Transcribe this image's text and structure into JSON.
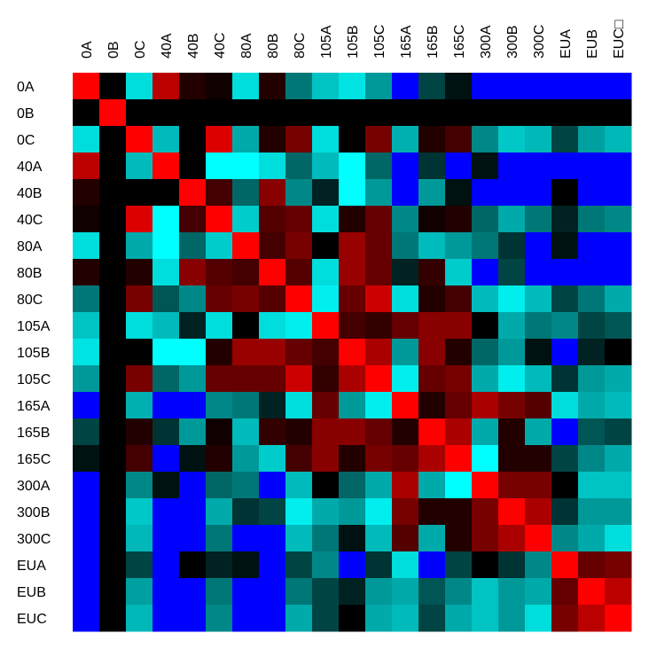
{
  "chart_data": {
    "type": "heatmap",
    "labels": [
      "0A",
      "0B",
      "0C",
      "40A",
      "40B",
      "40C",
      "80A",
      "80B",
      "80C",
      "105A",
      "105B",
      "105C",
      "165A",
      "165B",
      "165C",
      "300A",
      "300B",
      "300C",
      "EUA",
      "EUB",
      "EUC□"
    ],
    "row_labels": [
      "0A",
      "0B",
      "0C",
      "40A",
      "40B",
      "40C",
      "80A",
      "80B",
      "80C",
      "105A",
      "105B",
      "105C",
      "165A",
      "165B",
      "165C",
      "300A",
      "300B",
      "300C",
      "EUA",
      "EUB",
      "EUC"
    ],
    "colors": [
      [
        "#ff0000",
        "#000000",
        "#00dddd",
        "#bb0000",
        "#220000",
        "#110000",
        "#00dddd",
        "#220000",
        "#007777",
        "#00c4c4",
        "#00e3e3",
        "#009999",
        "#0000ff",
        "#004444",
        "#001111",
        "#0000ff",
        "#0000ff",
        "#0000ff",
        "#0000ff",
        "#0000ff",
        "#0000ff"
      ],
      [
        "#000000",
        "#ff0000",
        "#000000",
        "#000000",
        "#000000",
        "#000000",
        "#000000",
        "#000000",
        "#000000",
        "#000000",
        "#000000",
        "#000000",
        "#000000",
        "#000000",
        "#000000",
        "#000000",
        "#000000",
        "#000000",
        "#000000",
        "#000000",
        "#000000"
      ],
      [
        "#00dddd",
        "#000000",
        "#ff0000",
        "#00bbbb",
        "#000000",
        "#dd0000",
        "#00aaaa",
        "#220000",
        "#770000",
        "#00dddd",
        "#000000",
        "#770000",
        "#00b0b0",
        "#220000",
        "#440000",
        "#008888",
        "#00c8c8",
        "#00b8b8",
        "#004444",
        "#00a0a0",
        "#00b8b8"
      ],
      [
        "#bb0000",
        "#000000",
        "#00bbbb",
        "#ff0000",
        "#000000",
        "#00ffff",
        "#00ffff",
        "#00dddd",
        "#006666",
        "#00bbbb",
        "#00ffff",
        "#006666",
        "#0000ff",
        "#003333",
        "#0000ff",
        "#001111",
        "#0000ff",
        "#0000ff",
        "#0000ff",
        "#0000ff",
        "#0000ff"
      ],
      [
        "#220000",
        "#000000",
        "#000000",
        "#000000",
        "#ff0000",
        "#440000",
        "#006666",
        "#880000",
        "#008888",
        "#002222",
        "#00ffff",
        "#009999",
        "#0000ff",
        "#009999",
        "#001111",
        "#0000ff",
        "#0000ff",
        "#0000ff",
        "#000000",
        "#0000ff",
        "#0000ff"
      ],
      [
        "#110000",
        "#000000",
        "#dd0000",
        "#00ffff",
        "#440000",
        "#ff0000",
        "#00cccc",
        "#550000",
        "#660000",
        "#00dddd",
        "#220000",
        "#660000",
        "#008888",
        "#110000",
        "#220000",
        "#006666",
        "#00aaaa",
        "#007777",
        "#002222",
        "#007777",
        "#008888"
      ],
      [
        "#00dddd",
        "#000000",
        "#00aaaa",
        "#00ffff",
        "#006666",
        "#00cccc",
        "#ff0000",
        "#440000",
        "#770000",
        "#000000",
        "#990000",
        "#660000",
        "#007777",
        "#00bbbb",
        "#009999",
        "#007777",
        "#003333",
        "#0000ff",
        "#001111",
        "#0000ff",
        "#0000ff"
      ],
      [
        "#220000",
        "#000000",
        "#220000",
        "#00dddd",
        "#880000",
        "#550000",
        "#440000",
        "#ff0000",
        "#550000",
        "#00dddd",
        "#990000",
        "#660000",
        "#002222",
        "#330000",
        "#00cccc",
        "#0000ff",
        "#004444",
        "#0000ff",
        "#0000ff",
        "#0000ff",
        "#0000ff"
      ],
      [
        "#007777",
        "#000000",
        "#770000",
        "#005555",
        "#008888",
        "#660000",
        "#770000",
        "#550000",
        "#ff0000",
        "#00eeee",
        "#660000",
        "#cc0000",
        "#00dddd",
        "#220000",
        "#440000",
        "#00bbbb",
        "#00eeee",
        "#00bbbb",
        "#004444",
        "#007777",
        "#00aaaa"
      ],
      [
        "#00c4c4",
        "#000000",
        "#00dddd",
        "#00bbbb",
        "#002222",
        "#00dddd",
        "#000000",
        "#00dddd",
        "#00eeee",
        "#ff0000",
        "#440000",
        "#330000",
        "#660000",
        "#880000",
        "#880000",
        "#000000",
        "#00aaaa",
        "#007777",
        "#008888",
        "#004444",
        "#005555"
      ],
      [
        "#00e3e3",
        "#000000",
        "#000000",
        "#00ffff",
        "#00ffff",
        "#220000",
        "#990000",
        "#990000",
        "#660000",
        "#440000",
        "#ff0000",
        "#aa0000",
        "#009999",
        "#880000",
        "#220000",
        "#006666",
        "#009999",
        "#001111",
        "#0000ff",
        "#002222",
        "#000000"
      ],
      [
        "#009999",
        "#000000",
        "#770000",
        "#006666",
        "#009999",
        "#660000",
        "#660000",
        "#660000",
        "#cc0000",
        "#330000",
        "#aa0000",
        "#ff0000",
        "#00eeee",
        "#660000",
        "#770000",
        "#00aaaa",
        "#00eeee",
        "#00bbbb",
        "#003333",
        "#009999",
        "#00aaaa"
      ],
      [
        "#0000ff",
        "#000000",
        "#00b0b0",
        "#0000ff",
        "#0000ff",
        "#008888",
        "#007777",
        "#002222",
        "#00dddd",
        "#660000",
        "#009999",
        "#00eeee",
        "#ff0000",
        "#220000",
        "#660000",
        "#aa0000",
        "#770000",
        "#550000",
        "#00dddd",
        "#00aaaa",
        "#00bbbb"
      ],
      [
        "#004444",
        "#000000",
        "#220000",
        "#003333",
        "#009999",
        "#110000",
        "#00bbbb",
        "#330000",
        "#220000",
        "#880000",
        "#880000",
        "#660000",
        "#220000",
        "#ff0000",
        "#aa0000",
        "#00aaaa",
        "#220000",
        "#00aaaa",
        "#0000ff",
        "#005555",
        "#004444"
      ],
      [
        "#001111",
        "#000000",
        "#440000",
        "#0000ff",
        "#001111",
        "#220000",
        "#009999",
        "#00cccc",
        "#440000",
        "#880000",
        "#220000",
        "#770000",
        "#660000",
        "#aa0000",
        "#ff0000",
        "#00ffff",
        "#220000",
        "#220000",
        "#004444",
        "#008888",
        "#00aaaa"
      ],
      [
        "#0000ff",
        "#000000",
        "#008888",
        "#001111",
        "#0000ff",
        "#006666",
        "#007777",
        "#0000ff",
        "#00bbbb",
        "#000000",
        "#006666",
        "#00aaaa",
        "#aa0000",
        "#00aaaa",
        "#00ffff",
        "#ff0000",
        "#770000",
        "#770000",
        "#000000",
        "#00c4c4",
        "#00c4c4"
      ],
      [
        "#0000ff",
        "#000000",
        "#00c8c8",
        "#0000ff",
        "#0000ff",
        "#00aaaa",
        "#003333",
        "#004444",
        "#00eeee",
        "#00aaaa",
        "#009999",
        "#00eeee",
        "#770000",
        "#220000",
        "#220000",
        "#770000",
        "#ff0000",
        "#aa0000",
        "#003333",
        "#009999",
        "#009999"
      ],
      [
        "#0000ff",
        "#000000",
        "#00b8b8",
        "#0000ff",
        "#0000ff",
        "#007777",
        "#0000ff",
        "#0000ff",
        "#00bbbb",
        "#007777",
        "#001111",
        "#00bbbb",
        "#550000",
        "#00aaaa",
        "#220000",
        "#770000",
        "#aa0000",
        "#ff0000",
        "#008888",
        "#00aaaa",
        "#00dddd"
      ],
      [
        "#0000ff",
        "#000000",
        "#004444",
        "#0000ff",
        "#000000",
        "#002222",
        "#001111",
        "#0000ff",
        "#004444",
        "#008888",
        "#0000ff",
        "#003333",
        "#00dddd",
        "#0000ff",
        "#004444",
        "#000000",
        "#003333",
        "#008888",
        "#ff0000",
        "#660000",
        "#770000"
      ],
      [
        "#0000ff",
        "#000000",
        "#00a0a0",
        "#0000ff",
        "#0000ff",
        "#007777",
        "#0000ff",
        "#0000ff",
        "#007777",
        "#004444",
        "#002222",
        "#009999",
        "#00aaaa",
        "#005555",
        "#008888",
        "#00c4c4",
        "#009999",
        "#00aaaa",
        "#660000",
        "#ff0000",
        "#bb0000"
      ],
      [
        "#0000ff",
        "#000000",
        "#00b8b8",
        "#0000ff",
        "#0000ff",
        "#008888",
        "#0000ff",
        "#0000ff",
        "#00aaaa",
        "#004444",
        "#000000",
        "#00aaaa",
        "#00bbbb",
        "#004444",
        "#00aaaa",
        "#00c4c4",
        "#009999",
        "#00dddd",
        "#770000",
        "#bb0000",
        "#ff0000"
      ]
    ],
    "xlabel": "",
    "ylabel": "",
    "title": "",
    "legend": "none",
    "grid": false
  }
}
